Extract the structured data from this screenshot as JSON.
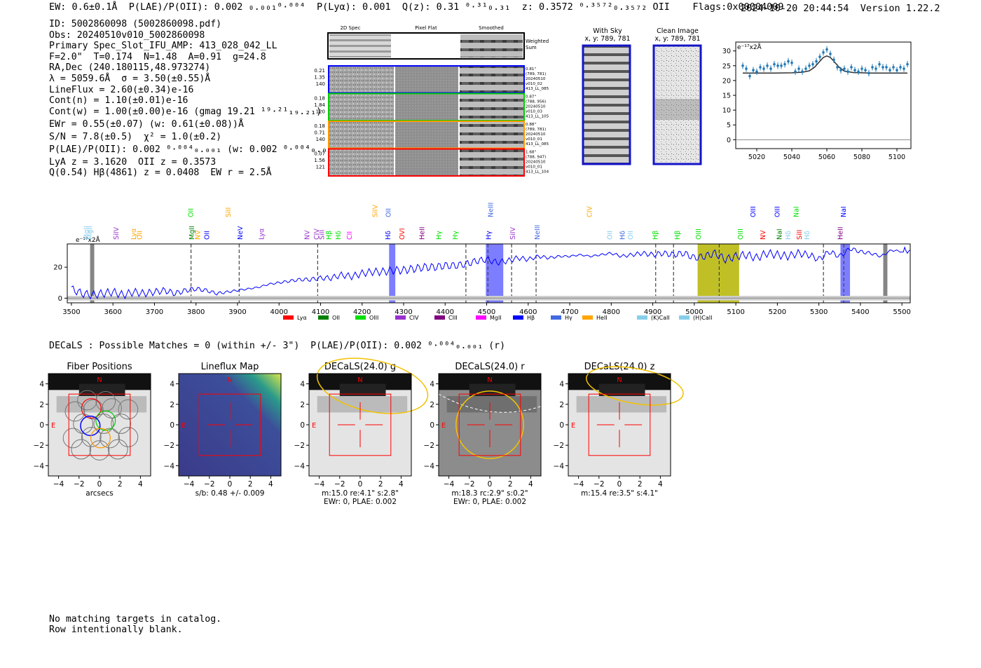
{
  "header": {
    "line": "EW: 0.6±0.1Å  P(LAE)/P(OII): 0.002 ₀.₀₀₁⁰·⁰⁰⁴  P(Lyα): 0.001  Q(z): 0.31 ⁰·³¹₀.₃₁  z: 0.3572 ⁰·³⁵⁷²₀.₃₅₇₂ OII    Flags:0x00004009",
    "timestamp": "2024-10-20 20:44:54",
    "version": "Version 1.22.2"
  },
  "info": {
    "lines": [
      "ID: 5002860098 (5002860098.pdf)",
      "Obs: 20240510v010_5002860098",
      "Primary Spec_Slot_IFU_AMP: 413_028_042_LL",
      "F=2.0\"  T=0.174  N=1.48  A=0.91  g=24.8",
      "RA,Dec (240.180115,48.973274)",
      "λ = 5059.6Å  σ = 3.50(±0.55)Å",
      "LineFlux = 2.60(±0.34)e-16",
      "Cont(n) = 1.10(±0.01)e-16",
      "Cont(w) = 1.00(±0.00)e-16 (gmag 19.21 ¹⁹·²¹₁₉.₂₁)",
      "EWr = 0.55(±0.07) (w: 0.61(±0.08))Å",
      "S/N = 7.8(±0.5)  χ² = 1.0(±0.2)",
      "P(LAE)/P(OII): 0.002 ⁰·⁰⁰⁴₀.₀₀₁ (w: 0.002 ⁰·⁰⁰⁴₀.₀₀₁)",
      "LyA z = 3.1620  OII z = 0.3573",
      "Q(0.54) Hβ(4861) z = 0.0408  EW r = 2.5Å"
    ]
  },
  "cutouts": {
    "col_titles": [
      "2D Spec",
      "Pixel Flat",
      "Smoothed"
    ],
    "weighted_label": "Weighted Sum",
    "rows": [
      {
        "nums": [
          "0.21",
          "1.35",
          "140"
        ],
        "meta": [
          "0.81\"",
          "(789, 781)",
          "20240510",
          "v010_02",
          "413_LL_085"
        ],
        "color": "#0000ff"
      },
      {
        "nums": [
          "0.18",
          "1.84",
          "120"
        ],
        "meta": [
          "0.87\"",
          "(788, 956)",
          "20240510",
          "v010_03",
          "413_LL_105"
        ],
        "color": "#00cc00"
      },
      {
        "nums": [
          "0.18",
          "0.71",
          "140"
        ],
        "meta": [
          "0.88\"",
          "(789, 781)",
          "20240510",
          "v010_01",
          "413_LL_085"
        ],
        "color": "#ff9900"
      },
      {
        "nums": [
          "0.07",
          "1.56",
          "121"
        ],
        "meta": [
          "1.68\"",
          "(788, 947)",
          "20240510",
          "v010_01",
          "413_LL_104"
        ],
        "color": "#ff0000"
      }
    ],
    "with_sky_title": "With Sky",
    "with_sky_coords": "x, y: 789, 781",
    "clean_title": "Clean Image",
    "clean_coords": "x, y: 789, 781"
  },
  "decals_line": "DECaLS : Possible Matches = 0 (within +/- 3\")  P(LAE)/P(OII): 0.002 ⁰·⁰⁰⁴₀.₀₀₁ (r)",
  "footer": [
    "No matching targets in catalog.",
    "Row intentionally blank."
  ],
  "chart_data": [
    {
      "type": "line",
      "title": "",
      "ylabel": "e⁻¹⁷x2Å",
      "xlim": [
        5008,
        5108
      ],
      "ylim": [
        -3,
        33
      ],
      "xticks": [
        5020,
        5040,
        5060,
        5080,
        5100
      ],
      "yticks": [
        0,
        5,
        10,
        15,
        20,
        25,
        30
      ],
      "series": [
        {
          "name": "data",
          "style": "errorbar",
          "color": "#1f77b4",
          "x": [
            5012,
            5014,
            5016,
            5018,
            5020,
            5022,
            5024,
            5026,
            5028,
            5030,
            5032,
            5034,
            5036,
            5038,
            5040,
            5042,
            5044,
            5046,
            5048,
            5050,
            5052,
            5054,
            5056,
            5058,
            5060,
            5062,
            5064,
            5066,
            5068,
            5070,
            5072,
            5074,
            5076,
            5078,
            5080,
            5082,
            5084,
            5086,
            5088,
            5090,
            5092,
            5094,
            5096,
            5098,
            5100,
            5102,
            5104,
            5106
          ],
          "y": [
            25.0,
            24.0,
            21.5,
            23.5,
            23.0,
            24.5,
            24.0,
            25.0,
            24.0,
            25.5,
            25.0,
            25.0,
            25.5,
            26.5,
            26.0,
            23.0,
            24.0,
            23.0,
            24.0,
            25.0,
            25.5,
            26.5,
            28.0,
            29.5,
            30.5,
            29.0,
            27.0,
            24.5,
            23.5,
            24.0,
            23.0,
            24.5,
            23.5,
            23.0,
            24.0,
            23.5,
            22.5,
            24.5,
            24.0,
            25.5,
            24.5,
            24.5,
            23.5,
            24.5,
            23.5,
            24.5,
            24.0,
            25.5
          ],
          "err": 1.1
        },
        {
          "name": "model",
          "style": "line",
          "color": "#303030",
          "x": [
            5012,
            5020,
            5030,
            5040,
            5046,
            5050,
            5053,
            5056,
            5058,
            5060,
            5062,
            5064,
            5067,
            5070,
            5075,
            5085,
            5095,
            5106
          ],
          "y": [
            22.5,
            22.5,
            22.5,
            22.6,
            22.8,
            23.3,
            24.5,
            26.5,
            27.8,
            28.3,
            27.8,
            26.5,
            24.5,
            23.2,
            22.7,
            22.5,
            22.5,
            22.5
          ]
        }
      ]
    },
    {
      "type": "line",
      "title": "",
      "ylabel": "e⁻¹⁷x2Å",
      "xlim": [
        3490,
        5520
      ],
      "ylim": [
        -3,
        35
      ],
      "xticks": [
        3500,
        3600,
        3700,
        3800,
        3900,
        4000,
        4100,
        4200,
        4300,
        4400,
        4500,
        4600,
        4700,
        4800,
        4900,
        5000,
        5100,
        5200,
        5300,
        5400,
        5500
      ],
      "yticks": [
        0,
        20
      ],
      "series": [
        {
          "name": "spectrum",
          "color": "#0000ff",
          "x": [
            3500,
            3525,
            3550,
            3575,
            3600,
            3625,
            3650,
            3675,
            3700,
            3725,
            3750,
            3775,
            3800,
            3825,
            3850,
            3875,
            3900,
            3925,
            3950,
            3975,
            4000,
            4025,
            4050,
            4075,
            4100,
            4125,
            4150,
            4175,
            4200,
            4225,
            4250,
            4275,
            4300,
            4325,
            4350,
            4375,
            4400,
            4425,
            4450,
            4475,
            4500,
            4525,
            4550,
            4575,
            4600,
            4625,
            4650,
            4675,
            4700,
            4725,
            4750,
            4775,
            4800,
            4825,
            4850,
            4875,
            4900,
            4925,
            4950,
            4975,
            5000,
            5025,
            5050,
            5075,
            5100,
            5125,
            5150,
            5175,
            5200,
            5225,
            5250,
            5275,
            5300,
            5325,
            5350,
            5375,
            5400,
            5425,
            5450,
            5475,
            5500,
            5520
          ],
          "y": [
            6,
            3,
            2,
            3,
            4,
            2,
            4,
            3,
            4,
            5,
            3,
            5,
            6,
            5,
            3,
            4,
            5,
            6,
            7,
            9,
            10,
            11,
            12,
            12,
            13,
            13,
            15,
            14,
            16,
            17,
            17,
            18,
            18,
            19,
            20,
            20,
            21,
            21,
            22,
            24,
            25,
            23,
            24,
            26,
            25,
            27,
            26,
            27,
            27,
            28,
            27,
            28,
            29,
            27,
            28,
            29,
            28,
            29,
            28,
            29,
            26,
            27,
            29,
            25,
            27,
            28,
            26,
            29,
            28,
            27,
            29,
            28,
            25,
            30,
            27,
            32,
            30,
            29,
            27,
            31,
            30,
            31
          ]
        },
        {
          "name": "sky",
          "color": "#a0a0a0",
          "x": [
            3490,
            5520
          ],
          "y": [
            0,
            0
          ]
        }
      ],
      "legend": [
        "Lyα",
        "OII",
        "OIII",
        "CIV",
        "CIII",
        "MgII",
        "Hβ",
        "Hγ",
        "HeII",
        "(K)CaII",
        "(H)CaII"
      ],
      "legend_colors": [
        "#ff0000",
        "#008000",
        "#00e000",
        "#9932cc",
        "#800080",
        "#ff00ff",
        "#0000ff",
        "#4169e1",
        "#ffa500",
        "#87ceeb",
        "#87ceeb"
      ],
      "shaded": [
        {
          "x0": 3545,
          "x1": 3555,
          "color": "#707070"
        },
        {
          "x0": 4265,
          "x1": 4280,
          "color": "#6666ff"
        },
        {
          "x0": 4498,
          "x1": 4540,
          "color": "#6666ff"
        },
        {
          "x0": 5008,
          "x1": 5108,
          "color": "#b5b500"
        },
        {
          "x0": 5352,
          "x1": 5375,
          "color": "#6666ff"
        },
        {
          "x0": 5455,
          "x1": 5465,
          "color": "#707070"
        }
      ],
      "dashed_lines": [
        3788,
        3904,
        4093,
        4450,
        4503,
        4560,
        4619,
        4907,
        4950,
        5060,
        5311,
        5360
      ],
      "line_labels": [
        {
          "label": "MgII",
          "x": 3536,
          "tier": 1,
          "color": "#87ceeb"
        },
        {
          "label": "MgII",
          "x": 3545,
          "tier": 1,
          "color": "#87ceeb"
        },
        {
          "label": "SiIV",
          "x": 3608,
          "tier": 1,
          "color": "#9932cc"
        },
        {
          "label": "Lyα",
          "x": 3650,
          "tier": 1,
          "color": "#ffa500"
        },
        {
          "label": "OII",
          "x": 3665,
          "tier": 1,
          "color": "#ffa500"
        },
        {
          "label": "MgII",
          "x": 3790,
          "tier": 1,
          "color": "#008000"
        },
        {
          "label": "NV",
          "x": 3805,
          "tier": 1,
          "color": "#ffa500"
        },
        {
          "label": "OII",
          "x": 3827,
          "tier": 1,
          "color": "#0000ff"
        },
        {
          "label": "NeV",
          "x": 3907,
          "tier": 1,
          "color": "#0000ff"
        },
        {
          "label": "Lyα",
          "x": 3958,
          "tier": 1,
          "color": "#9932cc"
        },
        {
          "label": "NV",
          "x": 4068,
          "tier": 1,
          "color": "#9932cc"
        },
        {
          "label": "CIV",
          "x": 4091,
          "tier": 1,
          "color": "#9932cc"
        },
        {
          "label": "SiII",
          "x": 4103,
          "tier": 1,
          "color": "#9932cc"
        },
        {
          "label": "Hβ",
          "x": 4120,
          "tier": 1,
          "color": "#00e000"
        },
        {
          "label": "Hδ",
          "x": 4143,
          "tier": 1,
          "color": "#00e000"
        },
        {
          "label": "CII",
          "x": 4170,
          "tier": 1,
          "color": "#ff00ff"
        },
        {
          "label": "Hδ",
          "x": 4263,
          "tier": 1,
          "color": "#0000ff"
        },
        {
          "label": "OVI",
          "x": 4297,
          "tier": 1,
          "color": "#ff0000"
        },
        {
          "label": "HeII",
          "x": 4345,
          "tier": 1,
          "color": "#800080"
        },
        {
          "label": "Hγ",
          "x": 4385,
          "tier": 1,
          "color": "#00e000"
        },
        {
          "label": "Hγ",
          "x": 4425,
          "tier": 1,
          "color": "#00e000"
        },
        {
          "label": "Hγ",
          "x": 4505,
          "tier": 1,
          "color": "#0000ff"
        },
        {
          "label": "SiIV",
          "x": 4563,
          "tier": 1,
          "color": "#9932cc"
        },
        {
          "label": "NeIII",
          "x": 4622,
          "tier": 1,
          "color": "#4169e1"
        },
        {
          "label": "OII",
          "x": 4797,
          "tier": 1,
          "color": "#87ceeb"
        },
        {
          "label": "Hδ",
          "x": 4827,
          "tier": 1,
          "color": "#4169e1"
        },
        {
          "label": "OII",
          "x": 4847,
          "tier": 1,
          "color": "#87ceeb"
        },
        {
          "label": "Hβ",
          "x": 4907,
          "tier": 1,
          "color": "#00e000"
        },
        {
          "label": "Hβ",
          "x": 4960,
          "tier": 1,
          "color": "#00e000"
        },
        {
          "label": "OIII",
          "x": 5010,
          "tier": 1,
          "color": "#00e000"
        },
        {
          "label": "OIII",
          "x": 5112,
          "tier": 1,
          "color": "#00e000"
        },
        {
          "label": "NV",
          "x": 5166,
          "tier": 1,
          "color": "#ff0000"
        },
        {
          "label": "NaI",
          "x": 5205,
          "tier": 1,
          "color": "#008000"
        },
        {
          "label": "Hδ",
          "x": 5226,
          "tier": 1,
          "color": "#87ceeb"
        },
        {
          "label": "SiII",
          "x": 5253,
          "tier": 1,
          "color": "#ff0000"
        },
        {
          "label": "Hδ",
          "x": 5272,
          "tier": 1,
          "color": "#87ceeb"
        },
        {
          "label": "HeII",
          "x": 5352,
          "tier": 1,
          "color": "#800080"
        },
        {
          "label": "OII",
          "x": 3788,
          "tier": 2,
          "color": "#00e000"
        },
        {
          "label": "SiII",
          "x": 3878,
          "tier": 2,
          "color": "#ffa500"
        },
        {
          "label": "SiIV",
          "x": 4232,
          "tier": 2,
          "color": "#ffa500"
        },
        {
          "label": "OII",
          "x": 4264,
          "tier": 2,
          "color": "#4169e1"
        },
        {
          "label": "NeIII",
          "x": 4510,
          "tier": 2,
          "color": "#4169e1"
        },
        {
          "label": "CIV",
          "x": 4748,
          "tier": 2,
          "color": "#ffa500"
        },
        {
          "label": "OIII",
          "x": 5142,
          "tier": 2,
          "color": "#0000ff"
        },
        {
          "label": "OIII",
          "x": 5200,
          "tier": 2,
          "color": "#0000ff"
        },
        {
          "label": "NaI",
          "x": 5246,
          "tier": 2,
          "color": "#00e000"
        },
        {
          "label": "NaI",
          "x": 5360,
          "tier": 2,
          "color": "#0000ff"
        }
      ]
    }
  ],
  "positions": {
    "panels": [
      {
        "title": "Fiber Positions",
        "xlabel": "arcsecs",
        "caption": []
      },
      {
        "title": "Lineflux Map",
        "xlabel": "s/b: 0.48 +/- 0.009",
        "caption": []
      },
      {
        "title": "DECaLS(24.0) g",
        "xlabel": "m:15.0  re:4.1\"  s:2.8\"",
        "caption": [
          "EWr: 0, PLAE: 0.002"
        ]
      },
      {
        "title": "DECaLS(24.0) r",
        "xlabel": "m:18.3 rc:2.9\"  s:0.2\"",
        "caption": [
          "EWr: 0, PLAE: 0.002"
        ]
      },
      {
        "title": "DECaLS(24.0) z",
        "xlabel": "m:15.4  re:3.5\"  s:4.1\"",
        "caption": []
      }
    ],
    "xticks": [
      "−4",
      "−2",
      "0",
      "2",
      "4"
    ],
    "yticks": [
      "4",
      "2",
      "0",
      "−2",
      "−4"
    ],
    "north": "N",
    "east": "E"
  }
}
